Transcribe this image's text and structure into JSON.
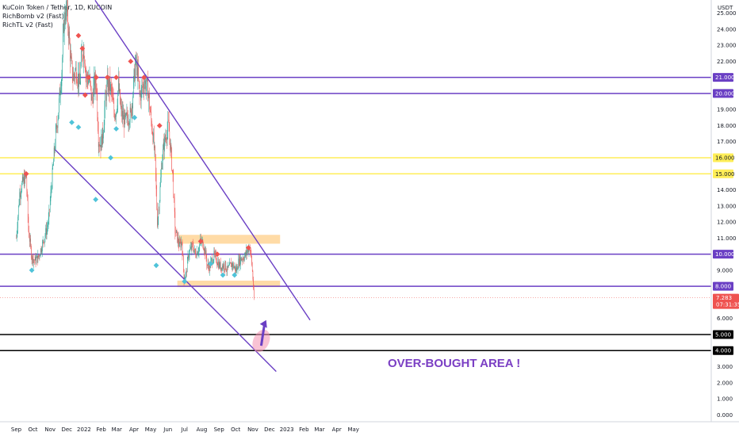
{
  "legend": {
    "title": "KuCoin Token / Tether, 1D, KUCOIN",
    "indicator_1": "RichBomb v2 (Fast)",
    "indicator_2": "RichTL v2 (Fast)"
  },
  "annotation": {
    "text": "OVER-BOUGHT AREA !",
    "color": "#7b3fc4"
  },
  "colors": {
    "up": "#26a69a",
    "down": "#ef5350",
    "purple": "#6a3fc4",
    "yellow": "#ffee58",
    "zone": "#ffcc80",
    "bomb_up": "#4fc3d9",
    "bomb_down": "#ef5350"
  },
  "chart_data": {
    "type": "candlestick",
    "symbol": "KCS/USDT",
    "timeframe": "1D",
    "y_axis": {
      "unit": "USDT",
      "range": [
        -0.2,
        25.6
      ],
      "ticks": [
        0,
        1,
        2,
        3,
        4,
        5,
        6,
        7,
        9,
        11,
        12,
        13,
        14,
        17,
        18,
        19,
        22,
        23,
        24,
        25
      ],
      "tick_labels": [
        "0.000",
        "1.000",
        "2.000",
        "3.000",
        "4.000",
        "5.000",
        "6.000",
        "7.000",
        "9.000",
        "11.000",
        "12.000",
        "13.000",
        "14.000",
        "17.000",
        "18.000",
        "19.000",
        "22.000",
        "23.000",
        "24.000",
        "25.000"
      ]
    },
    "x_axis": {
      "labels": [
        "Sep",
        "Oct",
        "Nov",
        "Dec",
        "2022",
        "Feb",
        "Mar",
        "Apr",
        "May",
        "Jun",
        "Jul",
        "Aug",
        "Sep",
        "Oct",
        "Nov",
        "Dec",
        "2023",
        "Feb",
        "Mar",
        "Apr",
        "May"
      ],
      "day_index": [
        0,
        30,
        61,
        91,
        122,
        153,
        181,
        212,
        242,
        273,
        303,
        334,
        365,
        395,
        426,
        456,
        487,
        518,
        546,
        577,
        607
      ]
    },
    "horizontal_levels": [
      {
        "value": 21,
        "label": "21.000",
        "color": "purple"
      },
      {
        "value": 20,
        "label": "20.000",
        "color": "purple"
      },
      {
        "value": 16,
        "label": "16.000",
        "color": "yellow"
      },
      {
        "value": 15,
        "label": "15.000",
        "color": "yellow"
      },
      {
        "value": 10,
        "label": "10.000",
        "color": "purple"
      },
      {
        "value": 8,
        "label": "8.000",
        "color": "purple"
      },
      {
        "value": 5,
        "label": "5.000",
        "color": "black"
      },
      {
        "value": 4,
        "label": "4.000",
        "color": "black"
      }
    ],
    "last_price": {
      "value": 7.283,
      "label": "7.283",
      "countdown": "07:31:35"
    },
    "trendlines": [
      {
        "from": [
          142,
          25.8
        ],
        "to": [
          529,
          5.9
        ]
      },
      {
        "from": [
          70,
          16.5
        ],
        "to": [
          468,
          2.7
        ]
      }
    ],
    "zones": [
      {
        "x": [
          293,
          475
        ],
        "y": [
          10.65,
          11.2
        ]
      },
      {
        "x": [
          290,
          475
        ],
        "y": [
          7.95,
          8.35
        ]
      }
    ],
    "arrow": {
      "from": [
        441,
        4.3
      ],
      "to": [
        450,
        5.9
      ]
    },
    "price_path": [
      [
        0,
        11.0
      ],
      [
        6,
        13.8
      ],
      [
        12,
        14.5
      ],
      [
        18,
        14.8
      ],
      [
        22,
        11.5
      ],
      [
        28,
        9.8
      ],
      [
        34,
        9.6
      ],
      [
        40,
        9.8
      ],
      [
        46,
        10.5
      ],
      [
        52,
        11.2
      ],
      [
        58,
        12.0
      ],
      [
        64,
        14.5
      ],
      [
        70,
        17.0
      ],
      [
        76,
        19.0
      ],
      [
        82,
        21.5
      ],
      [
        86,
        24.5
      ],
      [
        90,
        25.3
      ],
      [
        94,
        24.0
      ],
      [
        98,
        22.0
      ],
      [
        102,
        21.0
      ],
      [
        108,
        21.5
      ],
      [
        114,
        20.5
      ],
      [
        118,
        22.5
      ],
      [
        122,
        22.8
      ],
      [
        126,
        21.0
      ],
      [
        132,
        20.8
      ],
      [
        136,
        19.5
      ],
      [
        140,
        20.5
      ],
      [
        144,
        20.8
      ],
      [
        148,
        17.2
      ],
      [
        152,
        16.8
      ],
      [
        156,
        17.5
      ],
      [
        160,
        19.5
      ],
      [
        164,
        20.5
      ],
      [
        168,
        20.5
      ],
      [
        172,
        20.0
      ],
      [
        176,
        18.8
      ],
      [
        180,
        19.0
      ],
      [
        184,
        20.5
      ],
      [
        188,
        19.0
      ],
      [
        192,
        18.5
      ],
      [
        196,
        18.2
      ],
      [
        200,
        18.5
      ],
      [
        206,
        18.7
      ],
      [
        210,
        20.0
      ],
      [
        214,
        21.8
      ],
      [
        218,
        21.5
      ],
      [
        222,
        19.8
      ],
      [
        226,
        20.2
      ],
      [
        230,
        20.8
      ],
      [
        234,
        20.5
      ],
      [
        238,
        20.0
      ],
      [
        242,
        18.5
      ],
      [
        246,
        17.5
      ],
      [
        250,
        15.8
      ],
      [
        254,
        12.0
      ],
      [
        258,
        13.5
      ],
      [
        262,
        15.8
      ],
      [
        266,
        16.8
      ],
      [
        270,
        17.5
      ],
      [
        274,
        18.0
      ],
      [
        278,
        16.5
      ],
      [
        282,
        14.8
      ],
      [
        286,
        11.5
      ],
      [
        290,
        11.0
      ],
      [
        294,
        10.5
      ],
      [
        298,
        10.8
      ],
      [
        302,
        8.5
      ],
      [
        306,
        8.8
      ],
      [
        310,
        10.0
      ],
      [
        314,
        10.3
      ],
      [
        318,
        10.5
      ],
      [
        322,
        10.0
      ],
      [
        328,
        10.3
      ],
      [
        332,
        10.8
      ],
      [
        336,
        10.7
      ],
      [
        340,
        10.2
      ],
      [
        344,
        9.3
      ],
      [
        348,
        9.2
      ],
      [
        352,
        9.6
      ],
      [
        356,
        9.9
      ],
      [
        360,
        9.7
      ],
      [
        364,
        9.4
      ],
      [
        368,
        9.2
      ],
      [
        372,
        9.3
      ],
      [
        376,
        9.3
      ],
      [
        380,
        9.0
      ],
      [
        384,
        9.2
      ],
      [
        388,
        9.4
      ],
      [
        392,
        9.2
      ],
      [
        396,
        9.0
      ],
      [
        400,
        9.5
      ],
      [
        404,
        9.7
      ],
      [
        408,
        9.8
      ],
      [
        412,
        9.9
      ],
      [
        416,
        10.2
      ],
      [
        420,
        10.5
      ],
      [
        423,
        9.8
      ],
      [
        426,
        8.5
      ],
      [
        428,
        7.3
      ]
    ],
    "signals_down": [
      [
        18,
        15.0
      ],
      [
        112,
        23.6
      ],
      [
        119,
        22.8
      ],
      [
        124,
        19.9
      ],
      [
        130,
        21.0
      ],
      [
        144,
        21.0
      ],
      [
        164,
        21.0
      ],
      [
        180,
        21.0
      ],
      [
        206,
        22.0
      ],
      [
        230,
        21.0
      ],
      [
        258,
        18.0
      ],
      [
        332,
        10.8
      ],
      [
        362,
        10.0
      ],
      [
        418,
        10.4
      ]
    ],
    "signals_up": [
      [
        28,
        9.0
      ],
      [
        100,
        18.2
      ],
      [
        112,
        17.9
      ],
      [
        143,
        13.4
      ],
      [
        170,
        16.0
      ],
      [
        180,
        17.8
      ],
      [
        213,
        18.5
      ],
      [
        252,
        9.3
      ],
      [
        303,
        8.3
      ],
      [
        350,
        9.4
      ],
      [
        372,
        8.7
      ],
      [
        393,
        8.7
      ]
    ]
  }
}
